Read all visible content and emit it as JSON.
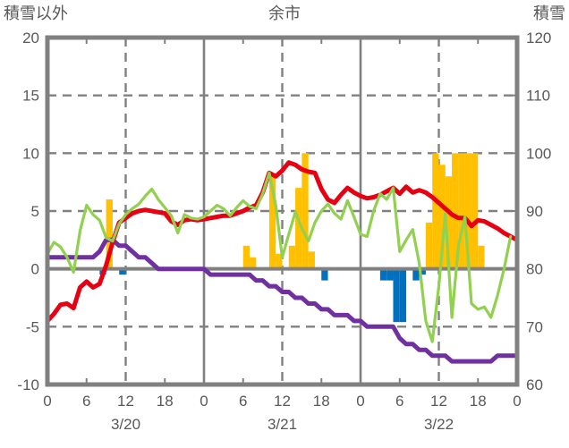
{
  "title": "余市",
  "left_axis": {
    "title": "積雪以外",
    "ticks": [
      20,
      15,
      10,
      5,
      0,
      -5,
      -10
    ],
    "max": 20,
    "min": -10
  },
  "right_axis": {
    "title": "積雪",
    "ticks": [
      120,
      110,
      100,
      90,
      80,
      70,
      60
    ],
    "max": 120,
    "min": 60
  },
  "x_axis": {
    "hours_total": 72,
    "tick_hours": [
      0,
      6,
      12,
      18,
      24,
      30,
      36,
      42,
      48,
      54,
      60,
      66,
      72
    ],
    "tick_labels": [
      "0",
      "6",
      "12",
      "18",
      "0",
      "6",
      "12",
      "18",
      "0",
      "6",
      "12",
      "18",
      "0"
    ],
    "date_labels": [
      {
        "label": "3/20",
        "hour": 12
      },
      {
        "label": "3/21",
        "hour": 36
      },
      {
        "label": "3/22",
        "hour": 60
      }
    ],
    "solid_gridline_hours": [
      24,
      48
    ],
    "dashed_gridline_hours": [
      12,
      36,
      60
    ],
    "minor_tick_hours": [
      6,
      18,
      30,
      42,
      54,
      66
    ]
  },
  "colors": {
    "red_line": "#E60012",
    "green_line": "#92D050",
    "purple_line": "#7030A0",
    "orange_bar": "#FFC000",
    "blue_bar": "#0070C0",
    "grid": "#808080",
    "text": "#595959",
    "background": "#FFFFFF"
  },
  "chart_data": {
    "type": "bar+line combo (hourly weather chart, dual axis)",
    "title": "余市",
    "x_unit": "hour from 3/20 00h to 3/22 24h (step 1 h)",
    "left_ylim": [
      -10,
      20
    ],
    "right_ylim": [
      60,
      120
    ],
    "grid": "dashed horizontal every 5 (left axis), dashed vertical at 12h marks, solid vertical at day boundaries, solid zero line",
    "legend": "none visible",
    "series": [
      {
        "name": "orange-bars (left axis)",
        "type": "bar",
        "axis": "left",
        "color": "#FFC000",
        "points_hour_value": [
          [
            9,
            6
          ],
          [
            30,
            2
          ],
          [
            31,
            1
          ],
          [
            34,
            8
          ],
          [
            35,
            1.3
          ],
          [
            37,
            2
          ],
          [
            38,
            7
          ],
          [
            39,
            10
          ],
          [
            40,
            1.5
          ],
          [
            58,
            4
          ],
          [
            59,
            10
          ],
          [
            60,
            9
          ],
          [
            61,
            8
          ],
          [
            62,
            10
          ],
          [
            63,
            10
          ],
          [
            64,
            10
          ],
          [
            65,
            10
          ],
          [
            66,
            2
          ]
        ]
      },
      {
        "name": "blue-bars (left axis, negative)",
        "type": "bar",
        "axis": "left",
        "color": "#0070C0",
        "points_hour_value": [
          [
            8,
            -0.5
          ],
          [
            11,
            -0.5
          ],
          [
            42,
            -1
          ],
          [
            51,
            -1
          ],
          [
            52,
            -1
          ],
          [
            53,
            -4.6
          ],
          [
            54,
            -4.6
          ],
          [
            56,
            -1
          ],
          [
            57,
            -0.5
          ]
        ]
      },
      {
        "name": "purple-line 積雪 (right axis, cm)",
        "type": "line",
        "axis": "right",
        "color": "#7030A0",
        "start_hour": 0,
        "values": [
          82,
          82,
          82,
          82,
          82,
          82,
          82,
          82,
          83,
          85,
          85,
          84,
          84,
          83,
          82,
          82,
          81,
          80,
          80,
          80,
          80,
          80,
          80,
          80,
          80,
          79,
          79,
          79,
          79,
          79,
          79,
          79,
          78,
          78,
          77,
          77,
          76,
          76,
          75,
          75,
          74,
          74,
          73,
          73,
          72,
          72,
          72,
          71,
          71,
          70,
          70,
          70,
          70,
          70,
          68,
          67,
          67,
          66,
          66,
          65,
          65,
          65,
          64,
          64,
          64,
          64,
          64,
          64,
          64,
          65,
          65,
          65,
          65
        ]
      },
      {
        "name": "red-line (left axis)",
        "type": "line",
        "axis": "left",
        "color": "#E60012",
        "start_hour": 0,
        "values": [
          -4.5,
          -3.9,
          -3.1,
          -3.0,
          -3.4,
          -1.6,
          -1.1,
          -1.6,
          -1.3,
          0.3,
          2.3,
          4.0,
          4.4,
          4.8,
          5.0,
          5.1,
          5.0,
          4.9,
          4.8,
          4.1,
          3.8,
          4.2,
          4.3,
          4.2,
          4.3,
          4.4,
          4.5,
          4.6,
          4.6,
          4.8,
          5.0,
          5.3,
          5.5,
          6.6,
          8.3,
          8.0,
          8.5,
          9.2,
          9.0,
          8.6,
          8.4,
          8.3,
          6.9,
          6.0,
          5.7,
          6.4,
          7.0,
          6.6,
          6.3,
          6.1,
          6.2,
          6.4,
          6.7,
          7.0,
          6.5,
          7.1,
          6.6,
          6.8,
          6.6,
          6.2,
          5.7,
          5.2,
          4.7,
          4.4,
          4.4,
          3.7,
          4.2,
          4.1,
          3.8,
          3.5,
          3.1,
          2.8,
          2.5
        ]
      },
      {
        "name": "green-line (left axis)",
        "type": "line",
        "axis": "left",
        "color": "#92D050",
        "start_hour": 0,
        "values": [
          1.3,
          2.3,
          1.9,
          1.0,
          -0.3,
          3.3,
          5.5,
          4.7,
          4.2,
          2.7,
          2.4,
          3.9,
          4.7,
          5.2,
          5.6,
          6.3,
          6.9,
          6.0,
          5.3,
          4.6,
          3.1,
          4.7,
          4.4,
          4.3,
          4.5,
          5.0,
          5.5,
          5.2,
          4.6,
          5.3,
          5.9,
          5.4,
          5.2,
          6.5,
          8.3,
          5.5,
          1.0,
          3.0,
          4.9,
          3.5,
          2.4,
          4.0,
          5.0,
          5.6,
          4.8,
          4.3,
          5.9,
          4.5,
          3.0,
          2.8,
          5.0,
          6.5,
          6.0,
          7.0,
          1.5,
          2.5,
          3.4,
          0.5,
          -4.5,
          -6.3,
          -1.5,
          4.8,
          -4.2,
          2.0,
          4.5,
          -3.0,
          -3.5,
          -3.3,
          -4.2,
          -2.3,
          0.0,
          2.8
        ]
      }
    ]
  }
}
